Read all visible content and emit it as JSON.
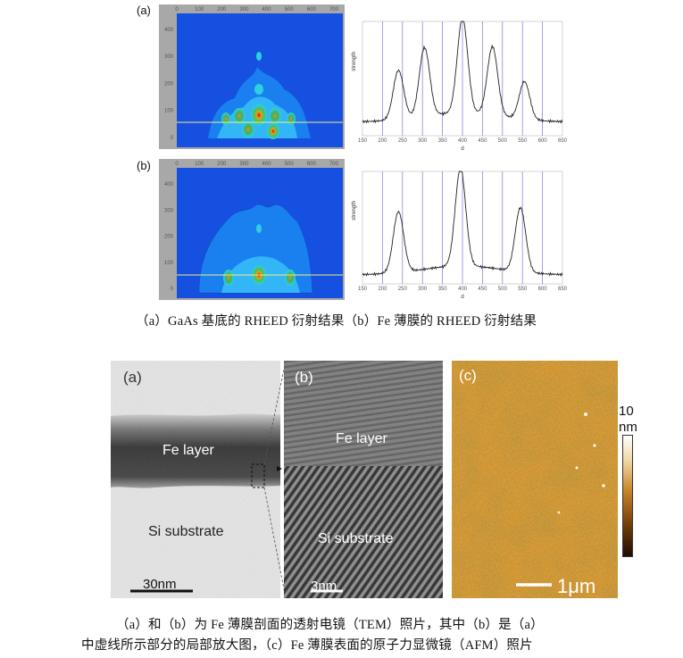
{
  "figure1": {
    "panel_a_label": "(a)",
    "panel_b_label": "(b)",
    "caption": "（a）GaAs 基底的 RHEED 衍射结果（b）Fe 薄膜的 RHEED 衍射结果"
  },
  "figure2": {
    "tem_a_label": "(a)",
    "tem_b_label": "(b)",
    "afm_c_label": "(c)",
    "fe_layer": "Fe layer",
    "si_substrate": "Si substrate",
    "scale_a": "30nm",
    "scale_b": "3nm",
    "scale_c": "1μm",
    "colorbar_top": "10",
    "colorbar_unit": "nm",
    "caption_line1": "（a）和（b）为 Fe 薄膜剖面的透射电镜（TEM）照片，其中（b）是（a）",
    "caption_line2": "中虚线所示部分的局部放大图，（c）Fe 薄膜表面的原子力显微镜（AFM）照片"
  },
  "chart_data": [
    {
      "type": "heatmap",
      "panel": "(a)",
      "x_ticks": [
        "0",
        "100",
        "200",
        "300",
        "400",
        "500",
        "600",
        "700"
      ],
      "y_ticks": [
        "400",
        "300",
        "200",
        "100",
        "0"
      ]
    },
    {
      "type": "line",
      "panel": "(a)",
      "xlabel": "d",
      "ylabel": "strength",
      "xlim": [
        150,
        650
      ],
      "x_ticks": [
        150,
        200,
        250,
        300,
        350,
        400,
        450,
        500,
        550,
        600,
        650
      ],
      "peaks": [
        {
          "x": 240,
          "y": 0.55
        },
        {
          "x": 305,
          "y": 0.72
        },
        {
          "x": 400,
          "y": 0.95
        },
        {
          "x": 475,
          "y": 0.72
        },
        {
          "x": 555,
          "y": 0.45
        }
      ],
      "baseline": 0.12
    },
    {
      "type": "heatmap",
      "panel": "(b)",
      "x_ticks": [
        "0",
        "100",
        "200",
        "300",
        "400",
        "500",
        "600",
        "700"
      ],
      "y_ticks": [
        "400",
        "300",
        "200",
        "100",
        "0"
      ]
    },
    {
      "type": "line",
      "panel": "(b)",
      "xlabel": "d",
      "ylabel": "strength",
      "xlim": [
        150,
        650
      ],
      "x_ticks": [
        150,
        200,
        250,
        300,
        350,
        400,
        450,
        500,
        550,
        600,
        650
      ],
      "peaks": [
        {
          "x": 240,
          "y": 0.62
        },
        {
          "x": 395,
          "y": 0.95
        },
        {
          "x": 545,
          "y": 0.65
        }
      ],
      "baseline": 0.08
    }
  ]
}
